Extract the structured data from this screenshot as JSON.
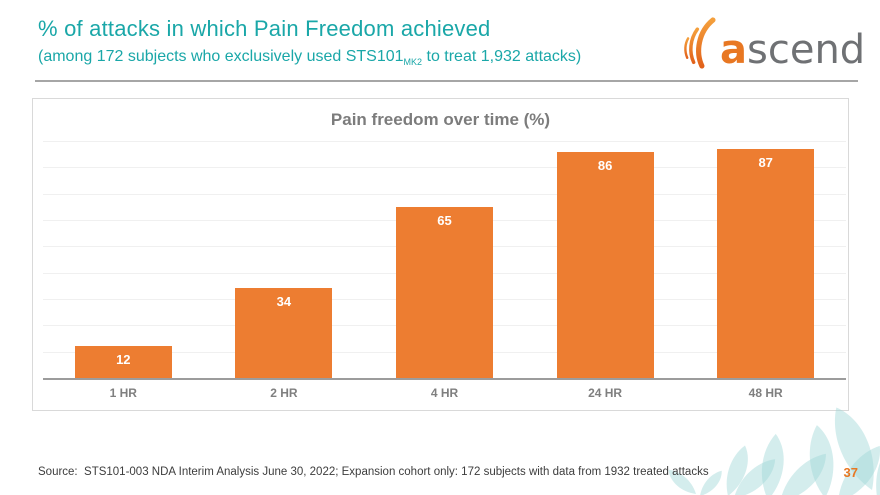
{
  "header": {
    "title": "% of attacks in which Pain Freedom achieved",
    "subtitle_pre": "(among 172 subjects who exclusively used STS101",
    "subtitle_sub": "MK2",
    "subtitle_post": " to treat 1,932 attacks)",
    "title_color": "#1aa7a8"
  },
  "logo": {
    "text_accent": "a",
    "text_rest": "scend",
    "accent_color": "#e87722",
    "text_color": "#6f7174"
  },
  "chart_data": {
    "type": "bar",
    "title": "Pain freedom over time (%)",
    "categories": [
      "1 HR",
      "2 HR",
      "4 HR",
      "24 HR",
      "48 HR"
    ],
    "values": [
      12,
      34,
      65,
      86,
      87
    ],
    "xlabel": "",
    "ylabel": "",
    "ylim": [
      0,
      90
    ],
    "gridline_step": 10,
    "grid": "on",
    "legend": "none",
    "bar_color": "#ed7d31",
    "value_label_color": "#ffffff"
  },
  "footer": {
    "source": "Source:  STS101-003 NDA Interim Analysis June 30, 2022; Expansion cohort only: 172 subjects with data from 1932 treated attacks",
    "page_number": "37"
  }
}
